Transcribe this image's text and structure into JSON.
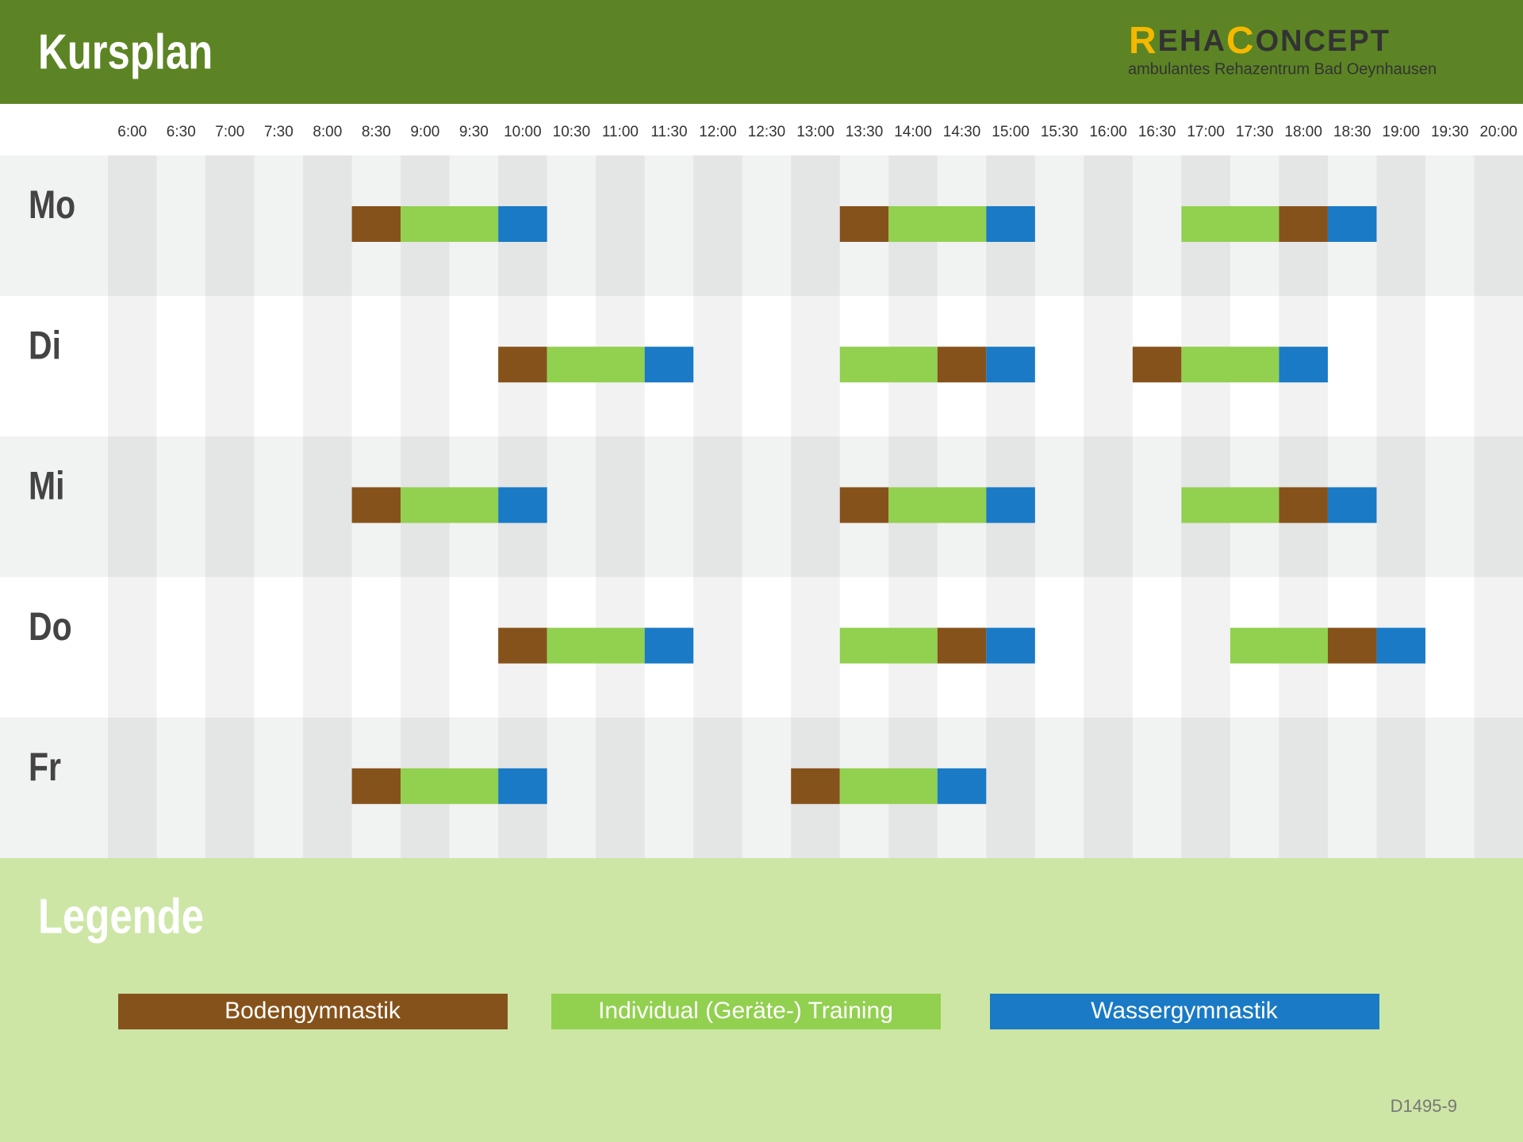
{
  "header": {
    "title": "Kursplan",
    "logo": {
      "parts": [
        "R",
        "EHA",
        "C",
        "ONCEPT"
      ],
      "subtitle": "ambulantes Rehazentrum Bad Oeynhausen"
    }
  },
  "schedule": {
    "range": [
      6,
      20.5
    ],
    "times": [
      {
        "value": 6,
        "label": "6:00"
      },
      {
        "value": 6.5,
        "label": "6:30"
      },
      {
        "value": 7,
        "label": "7:00"
      },
      {
        "value": 7.5,
        "label": "7:30"
      },
      {
        "value": 8,
        "label": "8:00"
      },
      {
        "value": 8.5,
        "label": "8:30"
      },
      {
        "value": 9,
        "label": "9:00"
      },
      {
        "value": 9.5,
        "label": "9:30"
      },
      {
        "value": 10,
        "label": "10:00"
      },
      {
        "value": 10.5,
        "label": "10:30"
      },
      {
        "value": 11,
        "label": "11:00"
      },
      {
        "value": 11.5,
        "label": "11:30"
      },
      {
        "value": 12,
        "label": "12:00"
      },
      {
        "value": 12.5,
        "label": "12:30"
      },
      {
        "value": 13,
        "label": "13:00"
      },
      {
        "value": 13.5,
        "label": "13:30"
      },
      {
        "value": 14,
        "label": "14:00"
      },
      {
        "value": 14.5,
        "label": "14:30"
      },
      {
        "value": 15,
        "label": "15:00"
      },
      {
        "value": 15.5,
        "label": "15:30"
      },
      {
        "value": 16,
        "label": "16:00"
      },
      {
        "value": 16.5,
        "label": "16:30"
      },
      {
        "value": 17,
        "label": "17:00"
      },
      {
        "value": 17.5,
        "label": "17:30"
      },
      {
        "value": 18,
        "label": "18:00"
      },
      {
        "value": 18.5,
        "label": "18:30"
      },
      {
        "value": 19,
        "label": "19:00"
      },
      {
        "value": 19.5,
        "label": "19:30"
      },
      {
        "value": 20,
        "label": "20:00"
      }
    ],
    "days": [
      {
        "label": "Mo",
        "sessions": [
          {
            "start": 8.5,
            "end": 9,
            "color": "#86521b"
          },
          {
            "start": 9,
            "end": 10,
            "color": "#92d050"
          },
          {
            "start": 10,
            "end": 10.5,
            "color": "#1a7ac5"
          },
          {
            "start": 13.5,
            "end": 14,
            "color": "#86521b"
          },
          {
            "start": 14,
            "end": 15,
            "color": "#92d050"
          },
          {
            "start": 15,
            "end": 15.5,
            "color": "#1a7ac5"
          },
          {
            "start": 17,
            "end": 18,
            "color": "#92d050"
          },
          {
            "start": 18,
            "end": 18.5,
            "color": "#86521b"
          },
          {
            "start": 18.5,
            "end": 19,
            "color": "#1a7ac5"
          }
        ]
      },
      {
        "label": "Di",
        "sessions": [
          {
            "start": 10,
            "end": 10.5,
            "color": "#86521b"
          },
          {
            "start": 10.5,
            "end": 11.5,
            "color": "#92d050"
          },
          {
            "start": 11.5,
            "end": 12,
            "color": "#1a7ac5"
          },
          {
            "start": 13.5,
            "end": 14.5,
            "color": "#92d050"
          },
          {
            "start": 14.5,
            "end": 15,
            "color": "#86521b"
          },
          {
            "start": 15,
            "end": 15.5,
            "color": "#1a7ac5"
          },
          {
            "start": 16.5,
            "end": 17,
            "color": "#86521b"
          },
          {
            "start": 17,
            "end": 18,
            "color": "#92d050"
          },
          {
            "start": 18,
            "end": 18.5,
            "color": "#1a7ac5"
          }
        ]
      },
      {
        "label": "Mi",
        "sessions": [
          {
            "start": 8.5,
            "end": 9,
            "color": "#86521b"
          },
          {
            "start": 9,
            "end": 10,
            "color": "#92d050"
          },
          {
            "start": 10,
            "end": 10.5,
            "color": "#1a7ac5"
          },
          {
            "start": 13.5,
            "end": 14,
            "color": "#86521b"
          },
          {
            "start": 14,
            "end": 15,
            "color": "#92d050"
          },
          {
            "start": 15,
            "end": 15.5,
            "color": "#1a7ac5"
          },
          {
            "start": 17,
            "end": 18,
            "color": "#92d050"
          },
          {
            "start": 18,
            "end": 18.5,
            "color": "#86521b"
          },
          {
            "start": 18.5,
            "end": 19,
            "color": "#1a7ac5"
          }
        ]
      },
      {
        "label": "Do",
        "sessions": [
          {
            "start": 10,
            "end": 10.5,
            "color": "#86521b"
          },
          {
            "start": 10.5,
            "end": 11.5,
            "color": "#92d050"
          },
          {
            "start": 11.5,
            "end": 12,
            "color": "#1a7ac5"
          },
          {
            "start": 13.5,
            "end": 14.5,
            "color": "#92d050"
          },
          {
            "start": 14.5,
            "end": 15,
            "color": "#86521b"
          },
          {
            "start": 15,
            "end": 15.5,
            "color": "#1a7ac5"
          },
          {
            "start": 17.5,
            "end": 18.5,
            "color": "#92d050"
          },
          {
            "start": 18.5,
            "end": 19,
            "color": "#86521b"
          },
          {
            "start": 19,
            "end": 19.5,
            "color": "#1a7ac5"
          }
        ]
      },
      {
        "label": "Fr",
        "sessions": [
          {
            "start": 8.5,
            "end": 9,
            "color": "#86521b"
          },
          {
            "start": 9,
            "end": 10,
            "color": "#92d050"
          },
          {
            "start": 10,
            "end": 10.5,
            "color": "#1a7ac5"
          },
          {
            "start": 13,
            "end": 13.5,
            "color": "#86521b"
          },
          {
            "start": 13.5,
            "end": 14.5,
            "color": "#92d050"
          },
          {
            "start": 14.5,
            "end": 15,
            "color": "#1a7ac5"
          }
        ]
      }
    ]
  },
  "legend": {
    "title": "Legende",
    "items": [
      {
        "name": "Bodengymnastik",
        "color": "#86521b"
      },
      {
        "name": "Individual (Geräte-) Training",
        "color": "#92d050"
      },
      {
        "name": "Wassergymnastik",
        "color": "#1a7ac5"
      }
    ]
  },
  "footer": {
    "code": "D1495-9"
  }
}
